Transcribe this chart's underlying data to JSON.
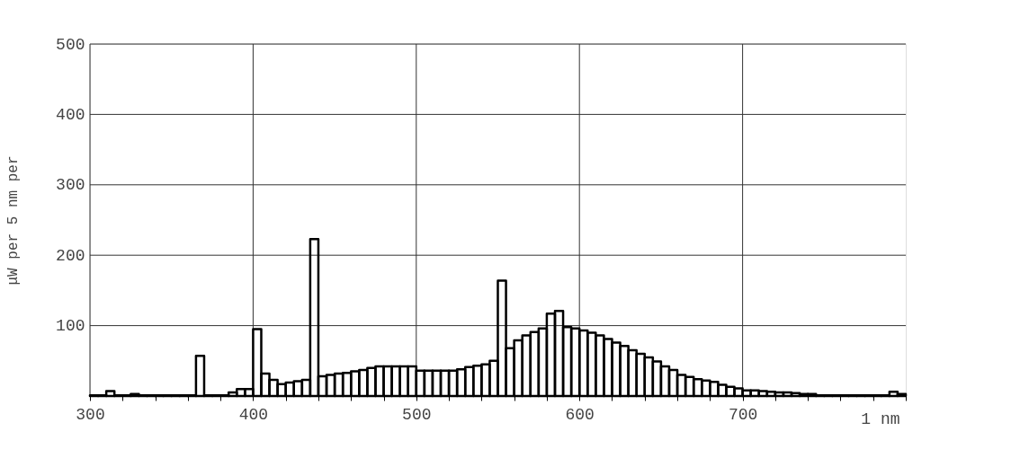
{
  "chart_data": {
    "type": "histogram",
    "ylabel": "μW per 5 nm per",
    "bins": [
      300,
      305,
      310,
      315,
      320,
      325,
      330,
      335,
      340,
      345,
      350,
      355,
      360,
      365,
      370,
      375,
      380,
      385,
      390,
      395,
      400,
      405,
      410,
      415,
      420,
      425,
      430,
      435,
      440,
      445,
      450,
      455,
      460,
      465,
      470,
      475,
      480,
      485,
      490,
      495,
      500,
      505,
      510,
      515,
      520,
      525,
      530,
      535,
      540,
      545,
      550,
      555,
      560,
      565,
      570,
      575,
      580,
      585,
      590,
      595,
      600,
      605,
      610,
      615,
      620,
      625,
      630,
      635,
      640,
      645,
      650,
      655,
      660,
      665,
      670,
      675,
      680,
      685,
      690,
      695,
      700,
      705,
      710,
      715,
      720,
      725,
      730,
      735,
      740,
      745,
      750,
      755,
      760,
      765,
      770,
      775,
      780,
      785,
      790,
      795,
      800
    ],
    "values": [
      1,
      1,
      7,
      1,
      1,
      3,
      1,
      1,
      1,
      1,
      1,
      1,
      1,
      57,
      1,
      1,
      1,
      5,
      10,
      10,
      95,
      32,
      23,
      17,
      19,
      21,
      23,
      223,
      28,
      30,
      32,
      33,
      35,
      37,
      40,
      42,
      42,
      42,
      42,
      42,
      36,
      36,
      36,
      36,
      36,
      38,
      41,
      43,
      45,
      50,
      164,
      68,
      79,
      86,
      91,
      96,
      117,
      121,
      98,
      96,
      93,
      90,
      86,
      81,
      76,
      71,
      65,
      60,
      55,
      49,
      42,
      37,
      30,
      27,
      24,
      22,
      20,
      16,
      13,
      11,
      8,
      8,
      7,
      6,
      5,
      5,
      4,
      3,
      3,
      1,
      1,
      1,
      1,
      1,
      1,
      1,
      1,
      1,
      6,
      3
    ],
    "color": "#000000",
    "xlim": [
      300,
      800
    ],
    "xticks": [
      300,
      {
        "value": 320,
        "label": null
      },
      {
        "value": 340,
        "label": null
      },
      {
        "value": 360,
        "label": null
      },
      {
        "value": 380,
        "label": null
      },
      400,
      {
        "value": 420,
        "label": null
      },
      {
        "value": 440,
        "label": null
      },
      {
        "value": 460,
        "label": null
      },
      {
        "value": 480,
        "label": null
      },
      500,
      {
        "value": 520,
        "label": null
      },
      {
        "value": 540,
        "label": null
      },
      {
        "value": 560,
        "label": null
      },
      {
        "value": 580,
        "label": null
      },
      600,
      {
        "value": 620,
        "label": null
      },
      {
        "value": 640,
        "label": null
      },
      {
        "value": 660,
        "label": null
      },
      {
        "value": 680,
        "label": null
      },
      700,
      {
        "value": 720,
        "label": null
      },
      {
        "value": 740,
        "label": null
      },
      {
        "value": 760,
        "label": null
      },
      {
        "value": 780,
        "label": null
      },
      {
        "value": 800,
        "label": null
      }
    ],
    "xlabel": "1 nm",
    "ylim": [
      0,
      500
    ],
    "yticks": [
      100,
      200,
      300,
      400,
      500
    ],
    "grid": true
  }
}
